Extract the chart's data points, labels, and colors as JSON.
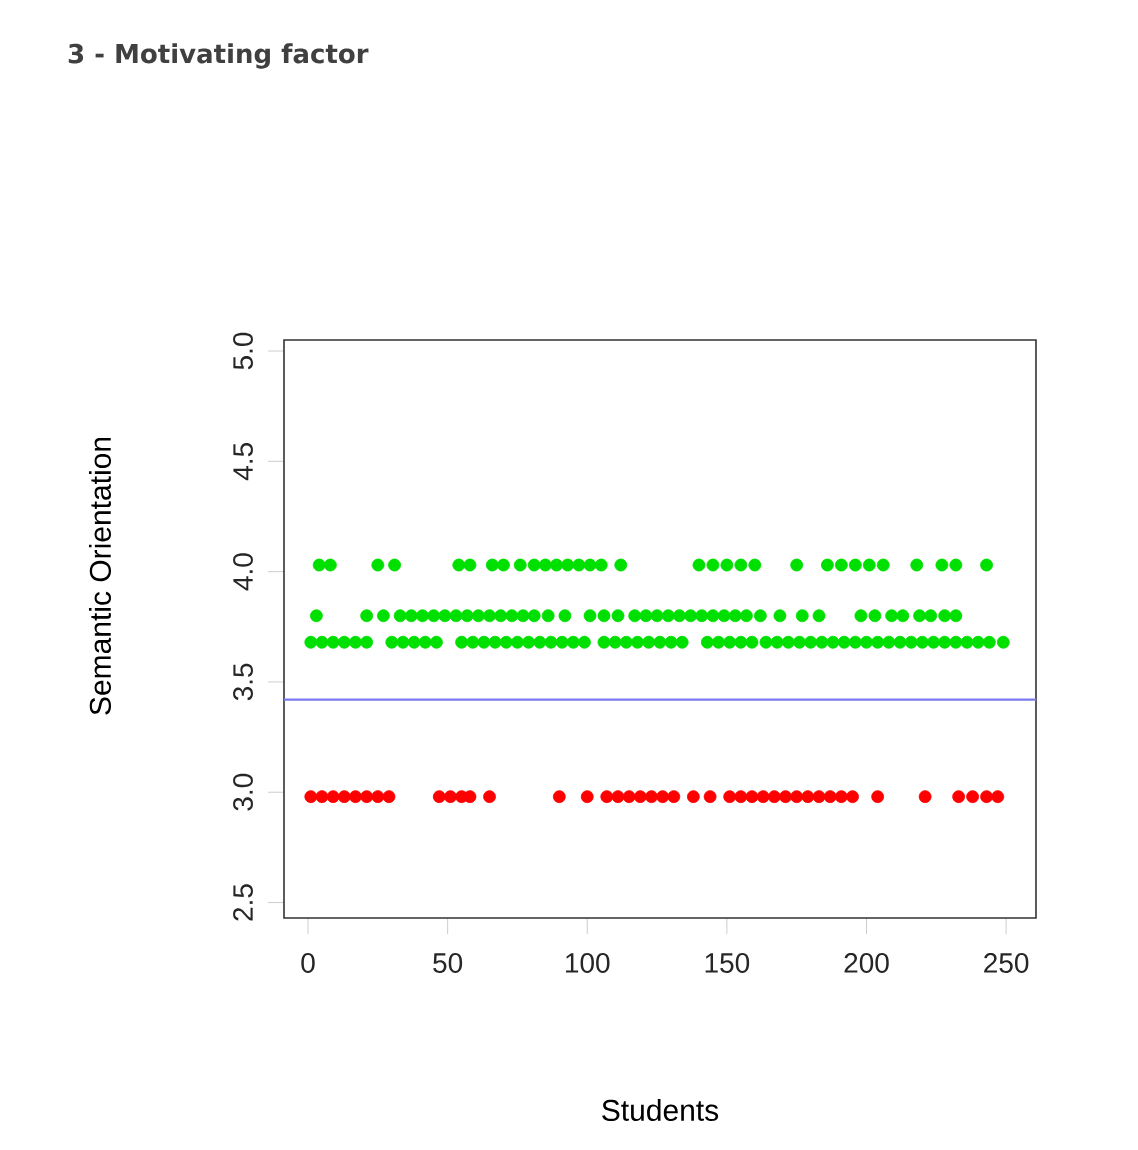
{
  "chart_data": {
    "type": "scatter",
    "title": "3 - Motivating factor",
    "xlabel": "Students",
    "ylabel": "Semantic Orientation",
    "xlim": [
      -8.6,
      260.7
    ],
    "ylim": [
      2.43,
      5.05
    ],
    "xticks": [
      0,
      50,
      100,
      150,
      200,
      250
    ],
    "yticks": [
      {
        "value": 2.5,
        "label": "2.5"
      },
      {
        "value": 3.0,
        "label": "3.0"
      },
      {
        "value": 3.5,
        "label": "3.5"
      },
      {
        "value": 4.0,
        "label": "4.0"
      },
      {
        "value": 4.5,
        "label": "4.5"
      },
      {
        "value": 5.0,
        "label": "5.0"
      }
    ],
    "marker": "circle",
    "grid": false,
    "ref_lines": [
      {
        "axis": "y",
        "value": 3.42,
        "color": "#7b7bf0"
      }
    ],
    "series": [
      {
        "color": "#00e000",
        "x": [
          4,
          8,
          25,
          31,
          54,
          58,
          66,
          70,
          76,
          81,
          85,
          89,
          93,
          97,
          101,
          105,
          112,
          140,
          145,
          150,
          155,
          160,
          175,
          186,
          191,
          196,
          201,
          206,
          218,
          227,
          232,
          243
        ],
        "values": [
          4.03,
          4.03,
          4.03,
          4.03,
          4.03,
          4.03,
          4.03,
          4.03,
          4.03,
          4.03,
          4.03,
          4.03,
          4.03,
          4.03,
          4.03,
          4.03,
          4.03,
          4.03,
          4.03,
          4.03,
          4.03,
          4.03,
          4.03,
          4.03,
          4.03,
          4.03,
          4.03,
          4.03,
          4.03,
          4.03,
          4.03,
          4.03
        ]
      },
      {
        "color": "#00e000",
        "x": [
          3,
          21,
          27,
          33,
          37,
          41,
          45,
          49,
          53,
          57,
          61,
          65,
          69,
          73,
          77,
          81,
          86,
          92,
          101,
          106,
          111,
          117,
          121,
          125,
          129,
          133,
          137,
          141,
          145,
          149,
          153,
          157,
          162,
          169,
          177,
          183,
          198,
          203,
          209,
          213,
          219,
          223,
          228,
          232
        ],
        "values": [
          3.8,
          3.8,
          3.8,
          3.8,
          3.8,
          3.8,
          3.8,
          3.8,
          3.8,
          3.8,
          3.8,
          3.8,
          3.8,
          3.8,
          3.8,
          3.8,
          3.8,
          3.8,
          3.8,
          3.8,
          3.8,
          3.8,
          3.8,
          3.8,
          3.8,
          3.8,
          3.8,
          3.8,
          3.8,
          3.8,
          3.8,
          3.8,
          3.8,
          3.8,
          3.8,
          3.8,
          3.8,
          3.8,
          3.8,
          3.8,
          3.8,
          3.8,
          3.8,
          3.8
        ]
      },
      {
        "color": "#00e000",
        "x": [
          1,
          5,
          9,
          13,
          17,
          21,
          30,
          34,
          38,
          42,
          46,
          55,
          59,
          63,
          67,
          71,
          75,
          79,
          83,
          87,
          91,
          95,
          99,
          106,
          110,
          114,
          118,
          122,
          126,
          130,
          134,
          143,
          147,
          151,
          155,
          159,
          164,
          168,
          172,
          176,
          180,
          184,
          188,
          192,
          196,
          200,
          204,
          208,
          212,
          216,
          220,
          224,
          228,
          232,
          236,
          240,
          244,
          249
        ],
        "values": [
          3.68,
          3.68,
          3.68,
          3.68,
          3.68,
          3.68,
          3.68,
          3.68,
          3.68,
          3.68,
          3.68,
          3.68,
          3.68,
          3.68,
          3.68,
          3.68,
          3.68,
          3.68,
          3.68,
          3.68,
          3.68,
          3.68,
          3.68,
          3.68,
          3.68,
          3.68,
          3.68,
          3.68,
          3.68,
          3.68,
          3.68,
          3.68,
          3.68,
          3.68,
          3.68,
          3.68,
          3.68,
          3.68,
          3.68,
          3.68,
          3.68,
          3.68,
          3.68,
          3.68,
          3.68,
          3.68,
          3.68,
          3.68,
          3.68,
          3.68,
          3.68,
          3.68,
          3.68,
          3.68,
          3.68,
          3.68,
          3.68,
          3.68
        ]
      },
      {
        "color": "#ff0000",
        "x": [
          1,
          5,
          9,
          13,
          17,
          21,
          25,
          29,
          47,
          51,
          55,
          58,
          65,
          90,
          100,
          107,
          111,
          115,
          119,
          123,
          127,
          131,
          138,
          144,
          151,
          155,
          159,
          163,
          167,
          171,
          175,
          179,
          183,
          187,
          191,
          195,
          204,
          221,
          233,
          238,
          243,
          247
        ],
        "values": [
          2.98,
          2.98,
          2.98,
          2.98,
          2.98,
          2.98,
          2.98,
          2.98,
          2.98,
          2.98,
          2.98,
          2.98,
          2.98,
          2.98,
          2.98,
          2.98,
          2.98,
          2.98,
          2.98,
          2.98,
          2.98,
          2.98,
          2.98,
          2.98,
          2.98,
          2.98,
          2.98,
          2.98,
          2.98,
          2.98,
          2.98,
          2.98,
          2.98,
          2.98,
          2.98,
          2.98,
          2.98,
          2.98,
          2.98,
          2.98,
          2.98,
          2.98
        ]
      }
    ]
  }
}
